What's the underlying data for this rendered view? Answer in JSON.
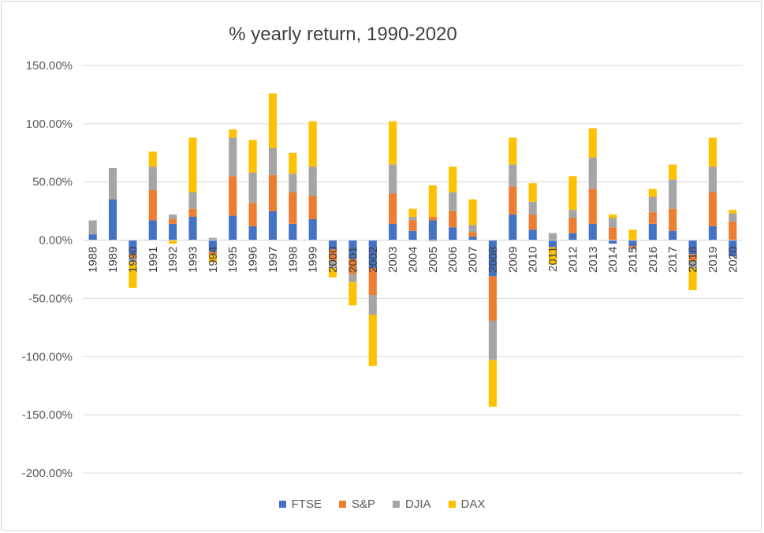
{
  "chart_data": {
    "type": "bar",
    "stacked": true,
    "title": "% yearly return, 1990-2020",
    "xlabel": "",
    "ylabel": "",
    "ylim": [
      -200,
      150
    ],
    "yticks": [
      150,
      100,
      50,
      0,
      -50,
      -100,
      -150,
      -200
    ],
    "ytick_labels": [
      "150.00%",
      "100.00%",
      "50.00%",
      "0.00%",
      "-50.00%",
      "-100.00%",
      "-150.00%",
      "-200.00%"
    ],
    "grid": true,
    "legend_position": "bottom",
    "categories": [
      "1988",
      "1989",
      "1990",
      "1991",
      "1992",
      "1993",
      "1994",
      "1995",
      "1996",
      "1997",
      "1998",
      "1999",
      "2000",
      "2001",
      "2002",
      "2003",
      "2004",
      "2005",
      "2006",
      "2007",
      "2008",
      "2009",
      "2010",
      "2011",
      "2012",
      "2013",
      "2014",
      "2015",
      "2016",
      "2017",
      "2018",
      "2019",
      "2020"
    ],
    "series": [
      {
        "name": "FTSE",
        "color": "#4472C4",
        "values": [
          5,
          35,
          -12,
          17,
          14,
          20,
          -10,
          21,
          12,
          25,
          14,
          18,
          -8,
          -16,
          -24,
          14,
          8,
          17,
          11,
          3,
          -31,
          22,
          9,
          -6,
          6,
          14,
          -3,
          -5,
          14,
          8,
          -12,
          12,
          -14
        ]
      },
      {
        "name": "S&P",
        "color": "#ED7D31",
        "values": [
          0,
          0,
          -3,
          26,
          4,
          7,
          -2,
          34,
          20,
          31,
          27,
          20,
          -10,
          -13,
          -23,
          26,
          9,
          3,
          14,
          4,
          -38,
          24,
          13,
          0,
          13,
          30,
          11,
          -1,
          10,
          19,
          -6,
          29,
          16
        ]
      },
      {
        "name": "DJIA",
        "color": "#A5A5A5",
        "values": [
          12,
          27,
          -4,
          20,
          4,
          14,
          2,
          33,
          26,
          23,
          16,
          25,
          -6,
          -7,
          -17,
          25,
          3,
          -1,
          16,
          6,
          -34,
          19,
          11,
          6,
          7,
          27,
          8,
          -2,
          13,
          25,
          -6,
          22,
          7
        ]
      },
      {
        "name": "DAX",
        "color": "#FFC000",
        "values": [
          0,
          0,
          -22,
          13,
          -3,
          47,
          -7,
          7,
          28,
          47,
          18,
          39,
          -8,
          -20,
          -44,
          37,
          7,
          27,
          22,
          22,
          -40,
          23,
          16,
          -15,
          29,
          25,
          3,
          9,
          7,
          13,
          -19,
          25,
          3
        ]
      }
    ]
  }
}
